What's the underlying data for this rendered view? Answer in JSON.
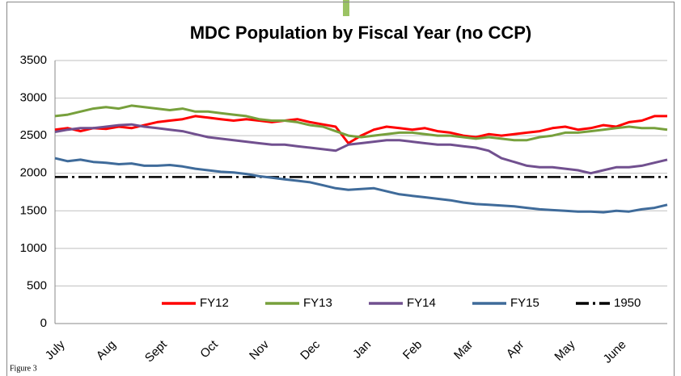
{
  "chart_data": {
    "type": "line",
    "title": "MDC Population by Fiscal Year (no CCP)",
    "caption": "Figure 3",
    "categories": [
      "July",
      null,
      null,
      null,
      "Aug",
      null,
      null,
      null,
      "Sept",
      null,
      null,
      null,
      "Oct",
      null,
      null,
      null,
      "Nov",
      null,
      null,
      null,
      "Dec",
      null,
      null,
      null,
      "Jan",
      null,
      null,
      null,
      "Feb",
      null,
      null,
      null,
      "Mar",
      null,
      null,
      null,
      "Apr",
      null,
      null,
      null,
      "May",
      null,
      null,
      null,
      "June",
      null,
      null,
      null,
      null
    ],
    "series": [
      {
        "name": "FY12",
        "color": "#ff0000",
        "values": [
          2580,
          2600,
          2560,
          2600,
          2590,
          2620,
          2600,
          2640,
          2680,
          2700,
          2720,
          2760,
          2740,
          2720,
          2700,
          2720,
          2700,
          2680,
          2700,
          2720,
          2680,
          2650,
          2620,
          2400,
          2500,
          2580,
          2620,
          2600,
          2580,
          2600,
          2560,
          2540,
          2500,
          2480,
          2520,
          2500,
          2520,
          2540,
          2560,
          2600,
          2620,
          2580,
          2600,
          2640,
          2620,
          2680,
          2700,
          2760,
          2760
        ]
      },
      {
        "name": "FY13",
        "color": "#77a03c",
        "values": [
          2760,
          2780,
          2820,
          2860,
          2880,
          2860,
          2900,
          2880,
          2860,
          2840,
          2860,
          2820,
          2820,
          2800,
          2780,
          2760,
          2720,
          2700,
          2700,
          2680,
          2640,
          2620,
          2560,
          2500,
          2480,
          2500,
          2520,
          2540,
          2540,
          2520,
          2500,
          2500,
          2480,
          2460,
          2480,
          2460,
          2440,
          2440,
          2480,
          2500,
          2540,
          2540,
          2560,
          2580,
          2600,
          2620,
          2600,
          2600,
          2580
        ]
      },
      {
        "name": "FY14",
        "color": "#71508f",
        "values": [
          2550,
          2580,
          2600,
          2600,
          2620,
          2640,
          2650,
          2620,
          2600,
          2580,
          2560,
          2520,
          2480,
          2460,
          2440,
          2420,
          2400,
          2380,
          2380,
          2360,
          2340,
          2320,
          2300,
          2380,
          2400,
          2420,
          2440,
          2440,
          2420,
          2400,
          2380,
          2380,
          2360,
          2340,
          2300,
          2200,
          2150,
          2100,
          2080,
          2080,
          2060,
          2040,
          2000,
          2040,
          2080,
          2080,
          2100,
          2140,
          2180
        ]
      },
      {
        "name": "FY15",
        "color": "#3f6b9a",
        "values": [
          2200,
          2160,
          2180,
          2150,
          2140,
          2120,
          2130,
          2100,
          2100,
          2110,
          2090,
          2060,
          2040,
          2020,
          2010,
          1990,
          1960,
          1940,
          1920,
          1900,
          1880,
          1840,
          1800,
          1780,
          1790,
          1800,
          1760,
          1720,
          1700,
          1680,
          1660,
          1640,
          1610,
          1590,
          1580,
          1570,
          1560,
          1540,
          1520,
          1510,
          1500,
          1490,
          1490,
          1480,
          1500,
          1490,
          1520,
          1540,
          1580
        ]
      }
    ],
    "reference_lines": [
      {
        "name": "1950",
        "value": 1950,
        "color": "#000000"
      }
    ],
    "ylim": [
      0,
      3500
    ],
    "yticks": [
      0,
      500,
      1000,
      1500,
      2000,
      2500,
      3000,
      3500
    ],
    "grid": true,
    "legend": "bottom"
  }
}
